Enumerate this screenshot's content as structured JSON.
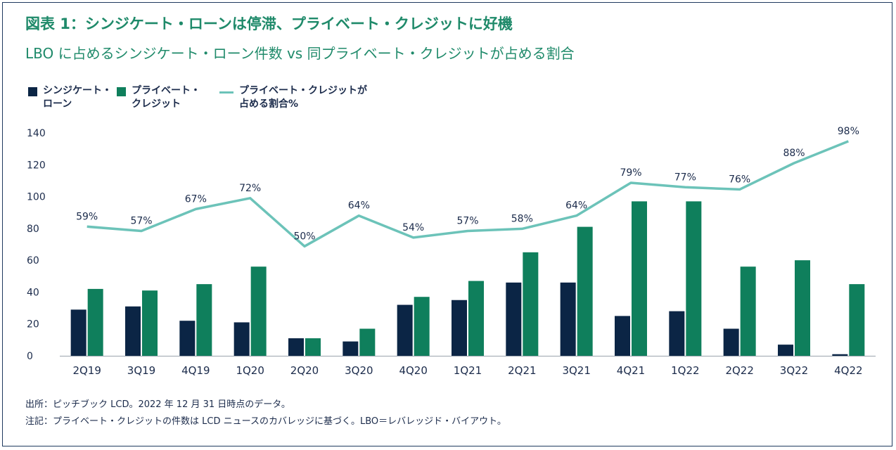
{
  "title": "図表 1：シンジケート・ローンは停滞、プライベート・クレジットに好機",
  "subtitle": "LBO に占めるシンジケート・ローン件数 vs 同プライベート・クレジットが占める割合",
  "legend": {
    "syndicated": "シンジケート・\nローン",
    "private": "プライベート・\nクレジット",
    "share": "プライベート・クレジットが\n占める割合%"
  },
  "colors": {
    "syndicated": "#0b2545",
    "private": "#0f7f5c",
    "share": "#6cc3b9",
    "axis_text": "#1b2b4b"
  },
  "chart_data": {
    "type": "bar",
    "categories": [
      "2Q19",
      "3Q19",
      "4Q19",
      "1Q20",
      "2Q20",
      "3Q20",
      "4Q20",
      "1Q21",
      "2Q21",
      "3Q21",
      "4Q21",
      "1Q22",
      "2Q22",
      "3Q22",
      "4Q22"
    ],
    "series": [
      {
        "name": "シンジケート・ローン",
        "values": [
          29,
          31,
          22,
          21,
          11,
          9,
          32,
          35,
          46,
          46,
          25,
          28,
          17,
          7,
          1
        ]
      },
      {
        "name": "プライベート・クレジット",
        "values": [
          42,
          41,
          45,
          56,
          11,
          17,
          37,
          47,
          65,
          81,
          97,
          97,
          56,
          60,
          45
        ]
      }
    ],
    "line": {
      "name": "プライベート・クレジットが占める割合%",
      "values": [
        59,
        57,
        67,
        72,
        50,
        64,
        54,
        57,
        58,
        64,
        79,
        77,
        76,
        88,
        98
      ],
      "labels": [
        "59%",
        "57%",
        "67%",
        "72%",
        "50%",
        "64%",
        "54%",
        "57%",
        "58%",
        "64%",
        "79%",
        "77%",
        "76%",
        "88%",
        "98%"
      ],
      "scale_note": "line plotted on same axis (value scaled by 1.375)"
    },
    "y_ticks": [
      "0",
      "20",
      "40",
      "60",
      "80",
      "100",
      "120",
      "140"
    ],
    "ylim": [
      0,
      140
    ]
  },
  "notes": {
    "source": "出所：ピッチブック LCD。2022 年 12 月 31 日時点のデータ。",
    "remark": "注記：プライベート・クレジットの件数は LCD ニュースのカバレッジに基づく。LBO＝レバレッジド・バイアウト。"
  }
}
